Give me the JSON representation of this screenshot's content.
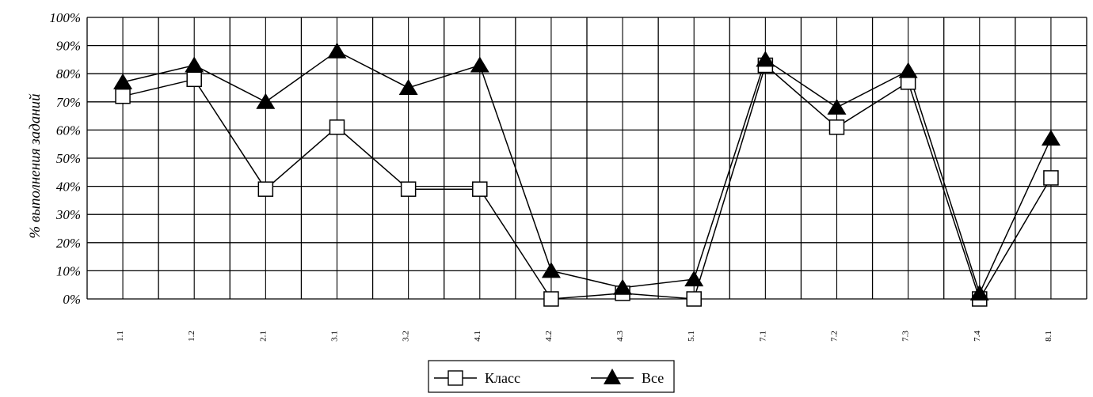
{
  "chart_data": {
    "type": "line",
    "title": "",
    "xlabel": "",
    "ylabel": "% выполнения заданий",
    "ylim": [
      0,
      100
    ],
    "y_tick_labels": [
      "0%",
      "10%",
      "20%",
      "30%",
      "40%",
      "50%",
      "60%",
      "70%",
      "80%",
      "90%",
      "100%"
    ],
    "categories": [
      "1.1",
      "1.2",
      "2.1",
      "3.1",
      "3.2",
      "4.1",
      "4.2",
      "4.3",
      "5.1",
      "7.1",
      "7.2",
      "7.3",
      "7.4",
      "8.1"
    ],
    "grid": true,
    "legend_position": "bottom",
    "series": [
      {
        "name": "Класс",
        "marker": "square-open",
        "color": "#000000",
        "values": [
          72,
          78,
          39,
          61,
          39,
          39,
          0,
          2,
          0,
          83,
          61,
          77,
          0,
          43
        ]
      },
      {
        "name": "Все",
        "marker": "triangle-filled",
        "color": "#000000",
        "values": [
          77,
          83,
          70,
          88,
          75,
          83,
          10,
          4,
          7,
          85,
          68,
          81,
          2,
          57
        ]
      }
    ]
  }
}
